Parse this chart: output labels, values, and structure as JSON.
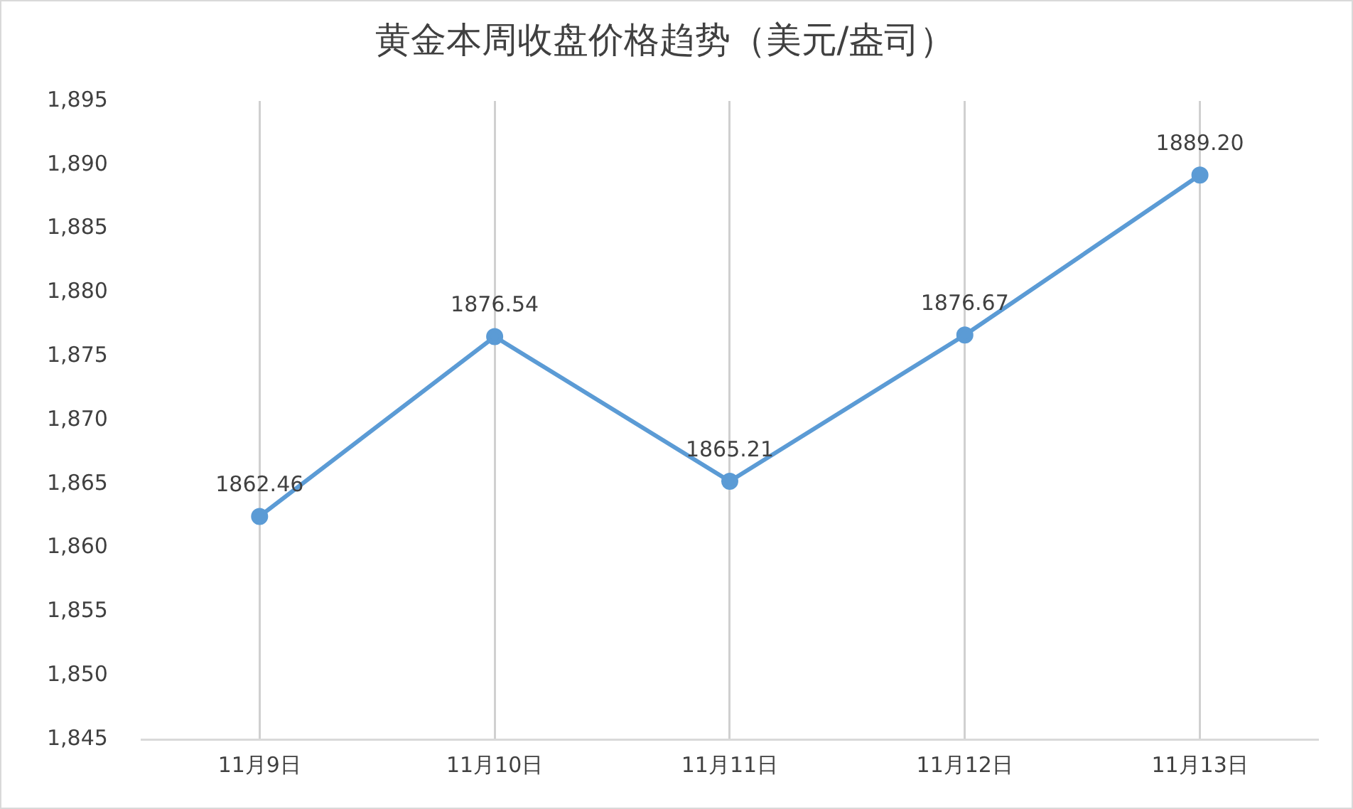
{
  "chart_data": {
    "type": "line",
    "title": "黄金本周收盘价格趋势（美元/盎司）",
    "categories": [
      "11月9日",
      "11月10日",
      "11月11日",
      "11月12日",
      "11月13日"
    ],
    "series": [
      {
        "color": "#5b9bd5",
        "values": [
          1862.46,
          1876.54,
          1865.21,
          1876.67,
          1889.2
        ],
        "value_labels": [
          "1862.46",
          "1876.54",
          "1865.21",
          "1876.67",
          "1889.20"
        ]
      }
    ],
    "ylim": [
      1845,
      1895
    ],
    "yticks": [
      {
        "value": 1845,
        "label": "1,845"
      },
      {
        "value": 1850,
        "label": "1,850"
      },
      {
        "value": 1855,
        "label": "1,855"
      },
      {
        "value": 1860,
        "label": "1,860"
      },
      {
        "value": 1865,
        "label": "1,865"
      },
      {
        "value": 1870,
        "label": "1,870"
      },
      {
        "value": 1875,
        "label": "1,875"
      },
      {
        "value": 1880,
        "label": "1,880"
      },
      {
        "value": 1885,
        "label": "1,885"
      },
      {
        "value": 1890,
        "label": "1,890"
      },
      {
        "value": 1895,
        "label": "1,895"
      }
    ],
    "grid": "x",
    "legend": false,
    "marker": "circle",
    "line_style": "solid"
  }
}
